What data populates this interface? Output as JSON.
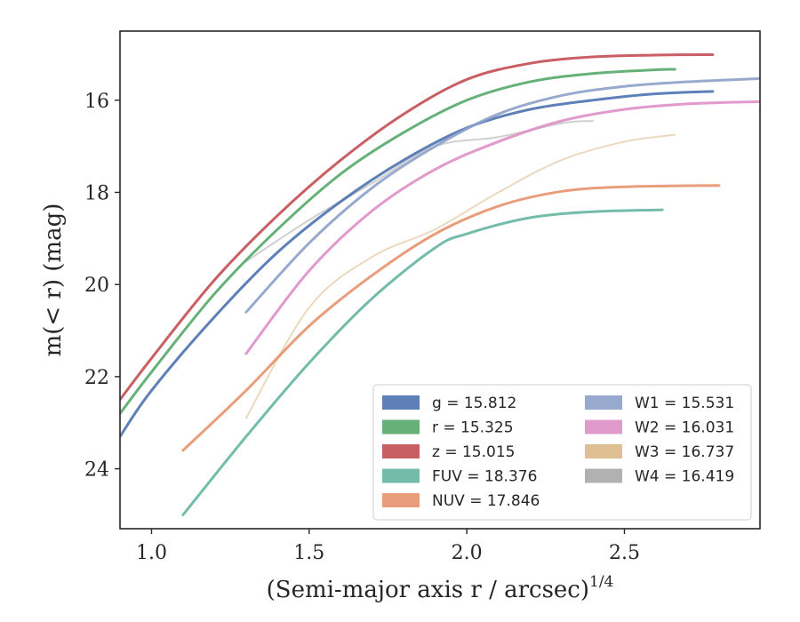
{
  "chart_data": {
    "type": "line",
    "xlabel": "(Semi-major axis r / arcsec)^1/4",
    "ylabel": "m(< r) (mag)",
    "xlim": [
      0.9,
      2.93
    ],
    "ylim": [
      25.3,
      14.5
    ],
    "y_inverted": true,
    "x_ticks": [
      "1.0",
      "1.5",
      "2.0",
      "2.5"
    ],
    "y_ticks": [
      "16",
      "18",
      "20",
      "22",
      "24"
    ],
    "grid": false,
    "legend_position": "lower-right",
    "series": [
      {
        "name": "g = 15.812",
        "color": "#4c72b0",
        "x": [
          0.9,
          1.0,
          1.2,
          1.4,
          1.6,
          1.8,
          2.0,
          2.2,
          2.4,
          2.6,
          2.78
        ],
        "y": [
          23.3,
          22.3,
          20.7,
          19.3,
          18.2,
          17.3,
          16.6,
          16.2,
          16.0,
          15.86,
          15.81
        ]
      },
      {
        "name": "r = 15.325",
        "color": "#55a868",
        "x": [
          0.9,
          1.0,
          1.2,
          1.4,
          1.6,
          1.8,
          2.0,
          2.2,
          2.4,
          2.6,
          2.66
        ],
        "y": [
          22.8,
          21.9,
          20.2,
          18.8,
          17.6,
          16.7,
          16.0,
          15.6,
          15.42,
          15.34,
          15.33
        ]
      },
      {
        "name": "z = 15.015",
        "color": "#c44e52",
        "x": [
          0.9,
          1.0,
          1.2,
          1.4,
          1.6,
          1.8,
          2.0,
          2.2,
          2.4,
          2.6,
          2.78
        ],
        "y": [
          22.5,
          21.6,
          19.9,
          18.5,
          17.3,
          16.3,
          15.55,
          15.2,
          15.06,
          15.02,
          15.01
        ]
      },
      {
        "name": "FUV = 18.376",
        "color": "#64b5a0",
        "x": [
          1.1,
          1.3,
          1.5,
          1.7,
          1.9,
          2.0,
          2.2,
          2.4,
          2.62
        ],
        "y": [
          25.0,
          23.3,
          21.7,
          20.3,
          19.2,
          18.9,
          18.55,
          18.42,
          18.38
        ]
      },
      {
        "name": "NUV = 17.846",
        "color": "#e8926b",
        "x": [
          1.1,
          1.3,
          1.5,
          1.7,
          1.9,
          2.1,
          2.3,
          2.5,
          2.8
        ],
        "y": [
          23.6,
          22.3,
          20.9,
          19.8,
          18.9,
          18.3,
          17.98,
          17.88,
          17.85
        ]
      },
      {
        "name": "W1 = 15.531",
        "color": "#8da0cb",
        "x": [
          1.3,
          1.5,
          1.7,
          1.9,
          2.1,
          2.3,
          2.5,
          2.7,
          2.93
        ],
        "y": [
          20.6,
          19.1,
          17.9,
          17.0,
          16.3,
          15.9,
          15.7,
          15.6,
          15.53
        ]
      },
      {
        "name": "W2 = 16.031",
        "color": "#dd8fc7",
        "x": [
          1.3,
          1.5,
          1.7,
          1.9,
          2.1,
          2.3,
          2.5,
          2.7,
          2.93
        ],
        "y": [
          21.5,
          19.7,
          18.4,
          17.5,
          16.9,
          16.45,
          16.2,
          16.08,
          16.03
        ]
      },
      {
        "name": "W3 = 16.737",
        "color": "#dbb98a",
        "x": [
          1.3,
          1.5,
          1.7,
          1.9,
          2.1,
          2.3,
          2.5,
          2.66
        ],
        "y": [
          22.9,
          20.5,
          19.4,
          18.8,
          18.0,
          17.3,
          16.9,
          16.75
        ]
      },
      {
        "name": "W4 = 16.419",
        "color": "#a9a9a9",
        "x": [
          1.3,
          1.5,
          1.7,
          1.9,
          2.1,
          2.3,
          2.4
        ],
        "y": [
          19.5,
          18.6,
          17.8,
          17.0,
          16.8,
          16.5,
          16.45
        ]
      }
    ]
  },
  "legend": {
    "left": [
      {
        "label": "g = 15.812",
        "color": "#4c72b0"
      },
      {
        "label": "r = 15.325",
        "color": "#55a868"
      },
      {
        "label": "z = 15.015",
        "color": "#c44e52"
      },
      {
        "label": "FUV = 18.376",
        "color": "#64b5a0"
      },
      {
        "label": "NUV = 17.846",
        "color": "#e8926b"
      }
    ],
    "right": [
      {
        "label": "W1 = 15.531",
        "color": "#8da0cb"
      },
      {
        "label": "W2 = 16.031",
        "color": "#dd8fc7"
      },
      {
        "label": "W3 = 16.737",
        "color": "#dbb98a"
      },
      {
        "label": "W4 = 16.419",
        "color": "#a9a9a9"
      }
    ]
  },
  "labels": {
    "ylabel": "m(< r) (mag)",
    "xlabel": "(Semi-major axis r / arcsec)",
    "xlabel_sup": "1/4"
  }
}
